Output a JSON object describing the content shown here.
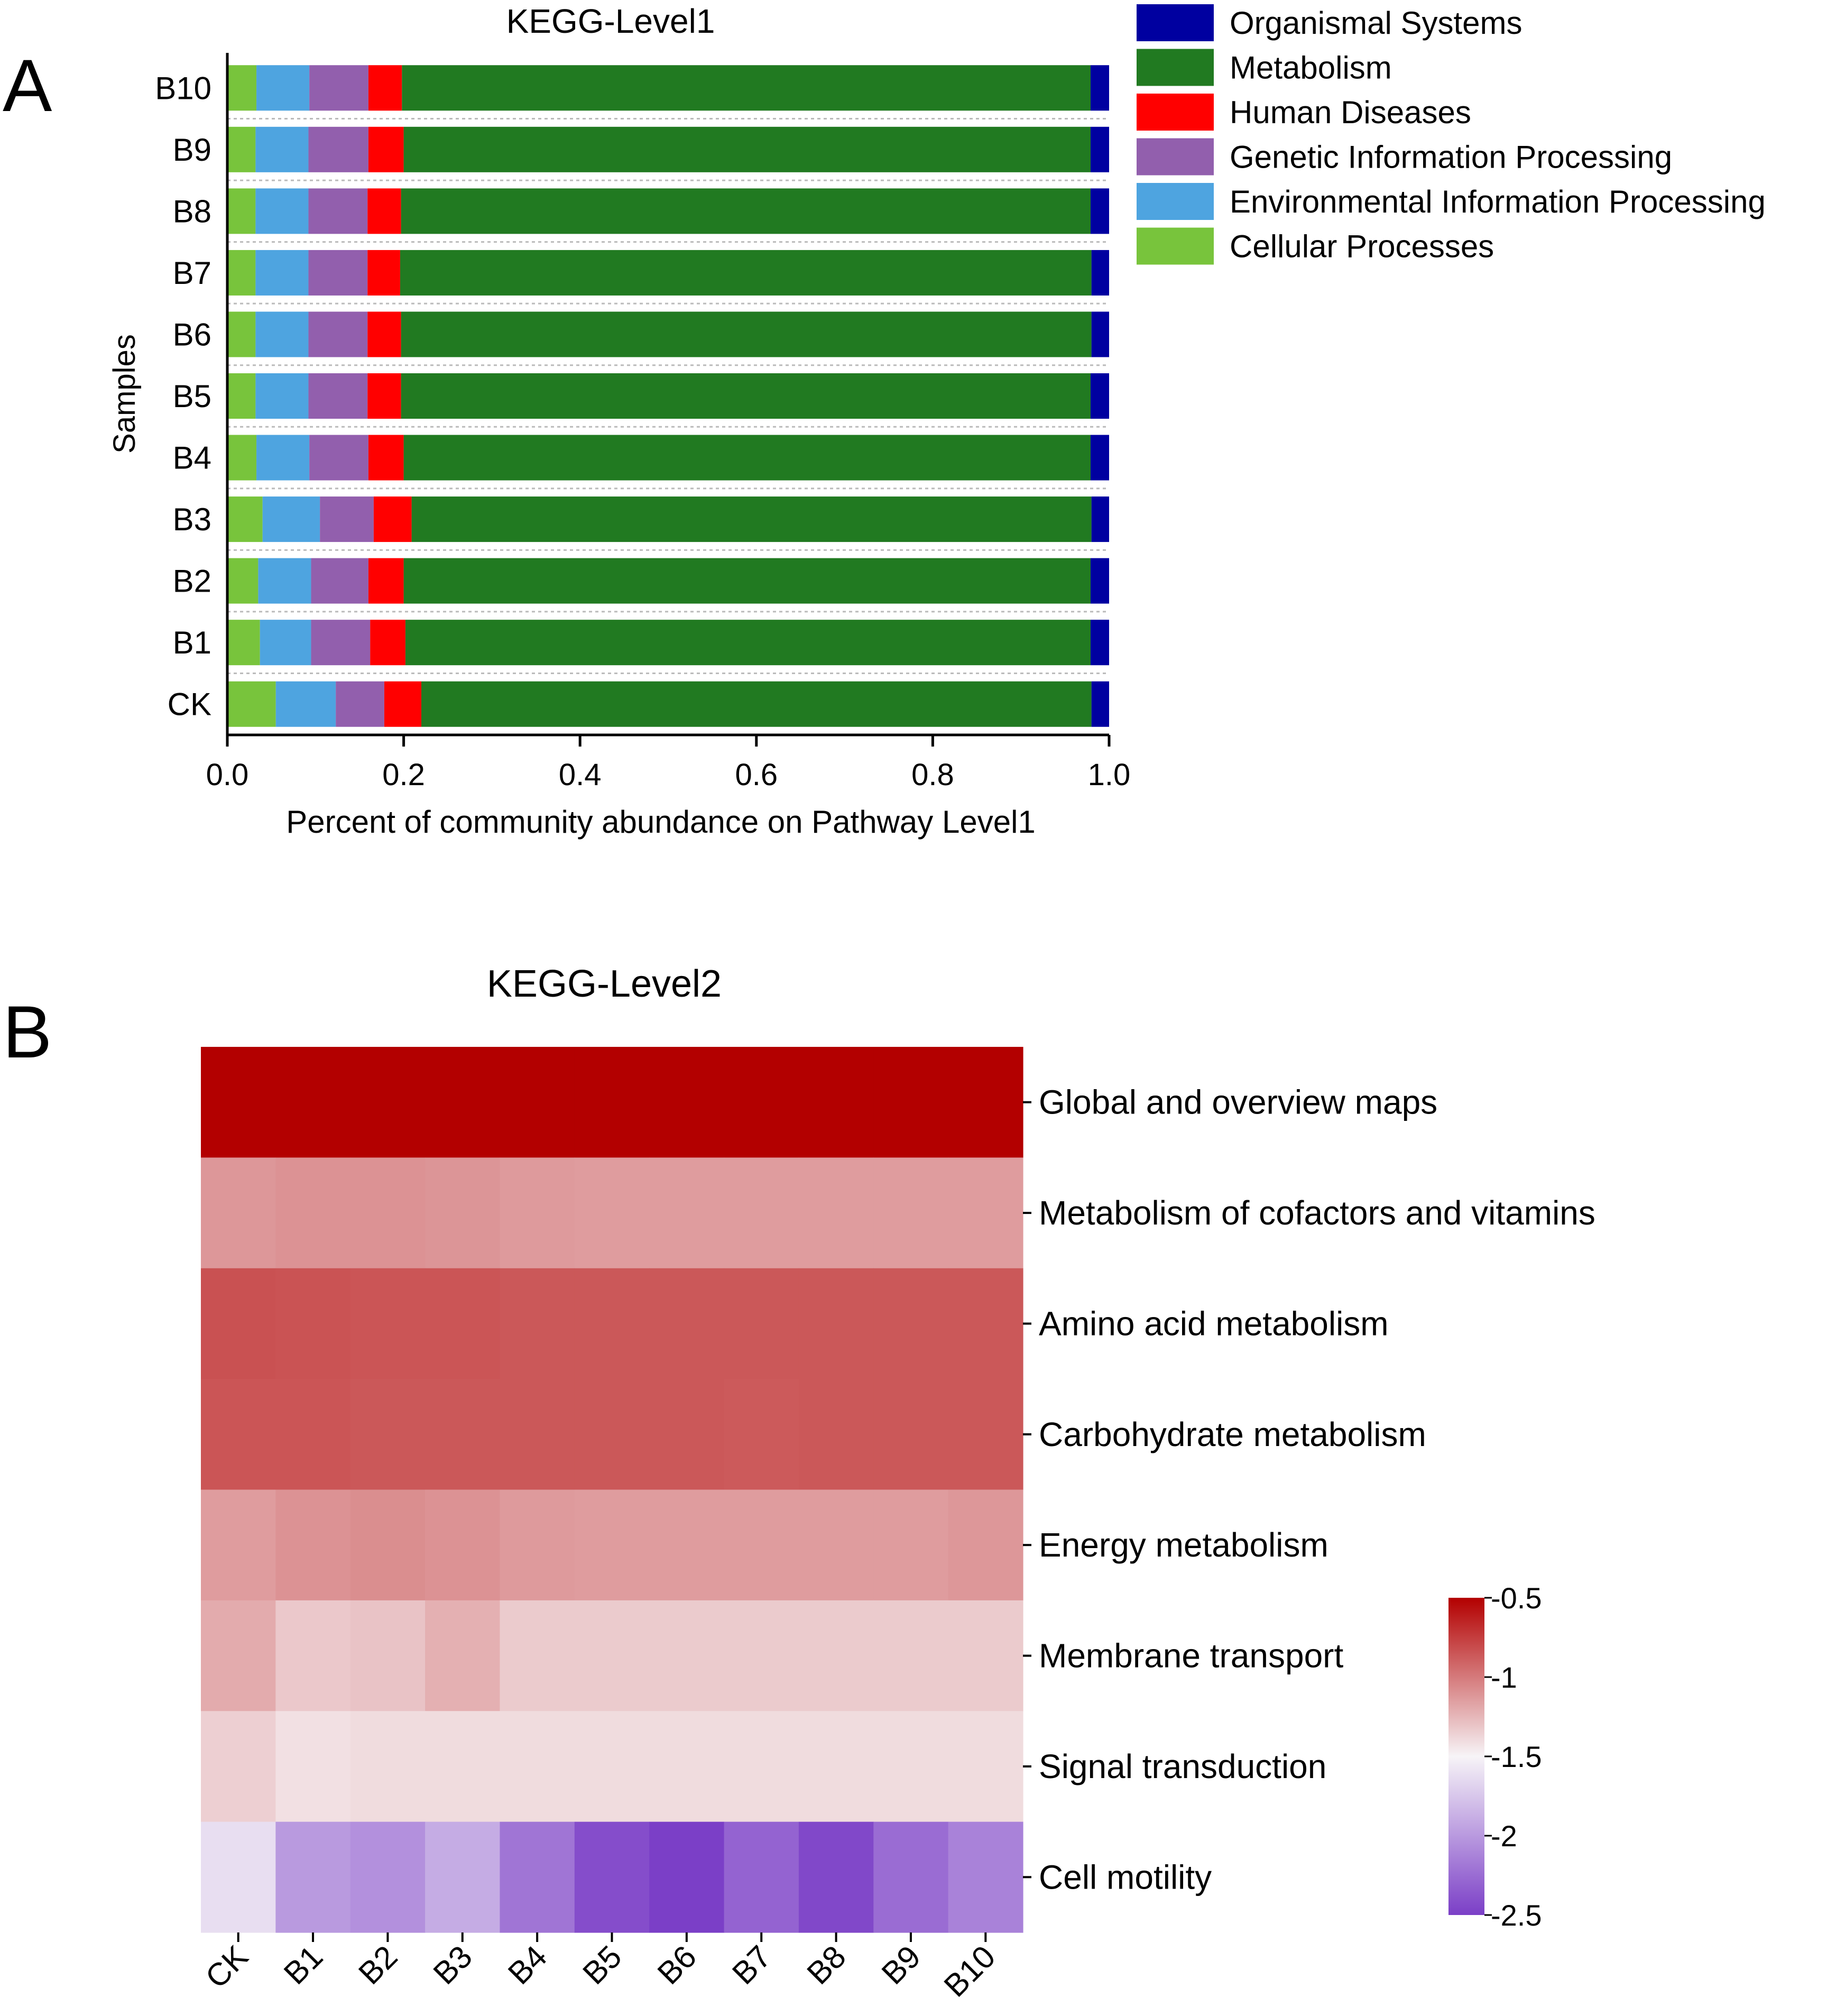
{
  "panels": {
    "a_label": "A",
    "b_label": "B"
  },
  "chart_data": [
    {
      "type": "bar",
      "orientation": "horizontal",
      "stacked": true,
      "title": "KEGG-Level1",
      "xlabel": "Percent of community abundance on Pathway Level1",
      "ylabel": "Samples",
      "xlim": [
        0,
        1.0
      ],
      "xticks": [
        "0.0",
        "0.2",
        "0.4",
        "0.6",
        "0.8",
        "1.0"
      ],
      "legend_position": "top-right",
      "categories": [
        "B10",
        "B9",
        "B8",
        "B7",
        "B6",
        "B5",
        "B4",
        "B3",
        "B2",
        "B1",
        "CK"
      ],
      "series": [
        {
          "name": "Cellular Processes",
          "color": "#78C43C",
          "values": [
            0.033,
            0.032,
            0.032,
            0.032,
            0.032,
            0.032,
            0.033,
            0.04,
            0.035,
            0.037,
            0.055
          ]
        },
        {
          "name": "Environmental Information Processing",
          "color": "#4EA4E0",
          "values": [
            0.06,
            0.06,
            0.06,
            0.06,
            0.06,
            0.06,
            0.06,
            0.065,
            0.06,
            0.058,
            0.068
          ]
        },
        {
          "name": "Genetic Information Processing",
          "color": "#925FAD",
          "values": [
            0.067,
            0.068,
            0.067,
            0.067,
            0.067,
            0.067,
            0.067,
            0.061,
            0.065,
            0.067,
            0.055
          ]
        },
        {
          "name": "Human Diseases",
          "color": "#FF0000",
          "values": [
            0.038,
            0.04,
            0.038,
            0.037,
            0.038,
            0.038,
            0.04,
            0.043,
            0.04,
            0.04,
            0.042
          ]
        },
        {
          "name": "Metabolism",
          "color": "#217A21",
          "values": [
            0.781,
            0.779,
            0.782,
            0.784,
            0.783,
            0.782,
            0.779,
            0.771,
            0.779,
            0.777,
            0.76
          ]
        },
        {
          "name": "Organismal Systems",
          "color": "#0000A0",
          "values": [
            0.021,
            0.021,
            0.021,
            0.02,
            0.02,
            0.021,
            0.021,
            0.02,
            0.021,
            0.021,
            0.02
          ]
        }
      ],
      "legend_order": [
        "Organismal Systems",
        "Metabolism",
        "Human Diseases",
        "Genetic Information Processing",
        "Environmental Information Processing",
        "Cellular Processes"
      ]
    },
    {
      "type": "heatmap",
      "title": "KEGG-Level2",
      "columns": [
        "CK",
        "B1",
        "B2",
        "B3",
        "B4",
        "B5",
        "B6",
        "B7",
        "B8",
        "B9",
        "B10"
      ],
      "rows": [
        "Global and overview maps",
        "Metabolism of cofactors and vitamins",
        "Amino acid metabolism",
        "Carbohydrate metabolism",
        "Energy metabolism",
        "Membrane transport",
        "Signal transduction",
        "Cell motility"
      ],
      "values": [
        [
          -0.5,
          -0.5,
          -0.5,
          -0.5,
          -0.5,
          -0.5,
          -0.5,
          -0.5,
          -0.5,
          -0.5,
          -0.5
        ],
        [
          -1.12,
          -1.1,
          -1.1,
          -1.11,
          -1.13,
          -1.14,
          -1.14,
          -1.14,
          -1.14,
          -1.14,
          -1.14
        ],
        [
          -0.83,
          -0.84,
          -0.85,
          -0.85,
          -0.86,
          -0.86,
          -0.86,
          -0.86,
          -0.86,
          -0.86,
          -0.86
        ],
        [
          -0.85,
          -0.85,
          -0.86,
          -0.86,
          -0.86,
          -0.86,
          -0.86,
          -0.87,
          -0.86,
          -0.86,
          -0.86
        ],
        [
          -1.14,
          -1.1,
          -1.08,
          -1.1,
          -1.13,
          -1.14,
          -1.14,
          -1.14,
          -1.14,
          -1.14,
          -1.12
        ],
        [
          -1.2,
          -1.32,
          -1.3,
          -1.22,
          -1.33,
          -1.33,
          -1.33,
          -1.33,
          -1.33,
          -1.33,
          -1.33
        ],
        [
          -1.35,
          -1.42,
          -1.4,
          -1.4,
          -1.4,
          -1.4,
          -1.4,
          -1.4,
          -1.4,
          -1.4,
          -1.4
        ],
        [
          -1.62,
          -2.0,
          -2.05,
          -1.9,
          -2.2,
          -2.42,
          -2.5,
          -2.3,
          -2.45,
          -2.25,
          -2.13
        ]
      ],
      "colorbar": {
        "min": -2.5,
        "max": -0.5,
        "ticks": [
          "-0.5",
          "-1",
          "-1.5",
          "-2",
          "-2.5"
        ],
        "low_color": "#7B3FC7",
        "mid_color": "#F7F4F7",
        "high_color": "#B30000"
      }
    }
  ]
}
